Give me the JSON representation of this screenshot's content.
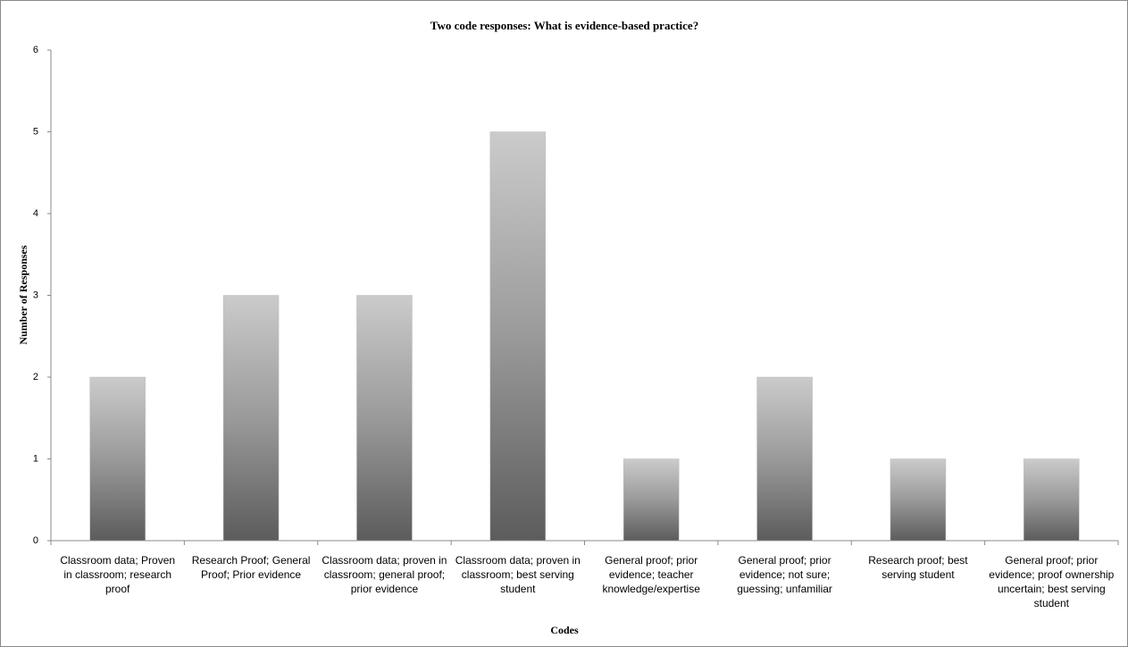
{
  "chart_data": {
    "type": "bar",
    "title": "Two code responses: What is evidence-based practice?",
    "x_label": "Codes",
    "y_label": "Number of Responses",
    "categories": [
      "Classroom data; Proven in classroom; research proof",
      "Research Proof; General Proof; Prior evidence",
      "Classroom data; proven in classroom; general proof; prior evidence",
      "Classroom data; proven in classroom; best serving student",
      "General proof; prior evidence; teacher knowledge/expertise",
      "General proof; prior evidence; not sure; guessing; unfamiliar",
      "Research proof; best serving student",
      "General proof; prior evidence; proof ownership uncertain; best serving student"
    ],
    "values": [
      2,
      3,
      3,
      5,
      1,
      2,
      1,
      1
    ],
    "color": "#7a7a7a",
    "ylim": [
      0,
      6
    ],
    "yticks": [
      0,
      1,
      2,
      3,
      4,
      5,
      6
    ],
    "grid": false
  }
}
